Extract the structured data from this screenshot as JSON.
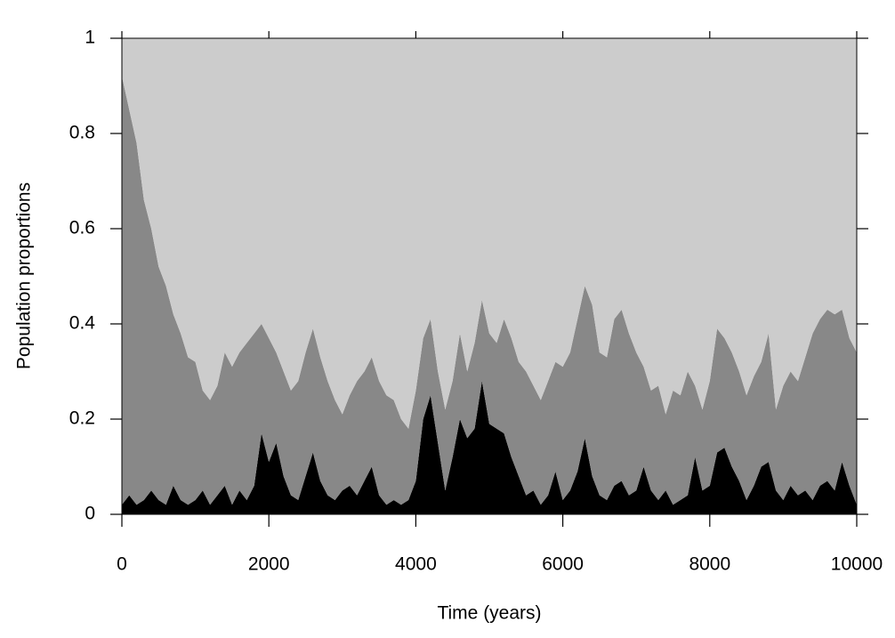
{
  "chart_data": {
    "type": "stacked_area",
    "x_label": "Time (years)",
    "y_label": "Population proportions",
    "x": [
      0,
      100,
      200,
      300,
      400,
      500,
      600,
      700,
      800,
      900,
      1000,
      1100,
      1200,
      1300,
      1400,
      1500,
      1600,
      1700,
      1800,
      1900,
      2000,
      2100,
      2200,
      2300,
      2400,
      2500,
      2600,
      2700,
      2800,
      2900,
      3000,
      3100,
      3200,
      3300,
      3400,
      3500,
      3600,
      3700,
      3800,
      3900,
      4000,
      4100,
      4200,
      4300,
      4400,
      4500,
      4600,
      4700,
      4800,
      4900,
      5000,
      5100,
      5200,
      5300,
      5400,
      5500,
      5600,
      5700,
      5800,
      5900,
      6000,
      6100,
      6200,
      6300,
      6400,
      6500,
      6600,
      6700,
      6800,
      6900,
      7000,
      7100,
      7200,
      7300,
      7400,
      7500,
      7600,
      7700,
      7800,
      7900,
      8000,
      8100,
      8200,
      8300,
      8400,
      8500,
      8600,
      8700,
      8800,
      8900,
      9000,
      9100,
      9200,
      9300,
      9400,
      9500,
      9600,
      9700,
      9800,
      9900,
      10000
    ],
    "series": [
      {
        "color": "#000000",
        "values": [
          0.02,
          0.04,
          0.02,
          0.03,
          0.05,
          0.03,
          0.02,
          0.06,
          0.03,
          0.02,
          0.03,
          0.05,
          0.02,
          0.04,
          0.06,
          0.02,
          0.05,
          0.03,
          0.06,
          0.17,
          0.11,
          0.15,
          0.08,
          0.04,
          0.03,
          0.08,
          0.13,
          0.07,
          0.04,
          0.03,
          0.05,
          0.06,
          0.04,
          0.07,
          0.1,
          0.04,
          0.02,
          0.03,
          0.02,
          0.03,
          0.07,
          0.2,
          0.25,
          0.15,
          0.05,
          0.12,
          0.2,
          0.16,
          0.18,
          0.28,
          0.19,
          0.18,
          0.17,
          0.12,
          0.08,
          0.04,
          0.05,
          0.02,
          0.04,
          0.09,
          0.03,
          0.05,
          0.09,
          0.16,
          0.08,
          0.04,
          0.03,
          0.06,
          0.07,
          0.04,
          0.05,
          0.1,
          0.05,
          0.03,
          0.05,
          0.02,
          0.03,
          0.04,
          0.12,
          0.05,
          0.06,
          0.13,
          0.14,
          0.1,
          0.07,
          0.03,
          0.06,
          0.1,
          0.11,
          0.05,
          0.03,
          0.06,
          0.04,
          0.05,
          0.03,
          0.06,
          0.07,
          0.05,
          0.11,
          0.06,
          0.02
        ]
      },
      {
        "color": "#888888",
        "values": [
          0.9,
          0.81,
          0.76,
          0.63,
          0.55,
          0.49,
          0.46,
          0.36,
          0.35,
          0.31,
          0.29,
          0.21,
          0.22,
          0.23,
          0.28,
          0.29,
          0.29,
          0.33,
          0.32,
          0.23,
          0.26,
          0.19,
          0.22,
          0.22,
          0.25,
          0.26,
          0.26,
          0.26,
          0.24,
          0.21,
          0.16,
          0.19,
          0.24,
          0.23,
          0.23,
          0.24,
          0.23,
          0.21,
          0.18,
          0.15,
          0.19,
          0.17,
          0.16,
          0.15,
          0.17,
          0.16,
          0.18,
          0.14,
          0.18,
          0.17,
          0.19,
          0.18,
          0.24,
          0.25,
          0.24,
          0.26,
          0.22,
          0.22,
          0.24,
          0.23,
          0.28,
          0.29,
          0.32,
          0.32,
          0.36,
          0.3,
          0.3,
          0.35,
          0.36,
          0.34,
          0.29,
          0.21,
          0.21,
          0.24,
          0.16,
          0.24,
          0.22,
          0.26,
          0.15,
          0.17,
          0.22,
          0.26,
          0.23,
          0.24,
          0.23,
          0.22,
          0.23,
          0.22,
          0.27,
          0.17,
          0.24,
          0.24,
          0.24,
          0.28,
          0.35,
          0.35,
          0.36,
          0.37,
          0.32,
          0.31,
          0.32
        ]
      },
      {
        "color": "#cccccc",
        "values": [
          0.08,
          0.15,
          0.22,
          0.34,
          0.4,
          0.48,
          0.52,
          0.58,
          0.62,
          0.67,
          0.68,
          0.74,
          0.76,
          0.73,
          0.66,
          0.69,
          0.66,
          0.64,
          0.62,
          0.6,
          0.63,
          0.66,
          0.7,
          0.74,
          0.72,
          0.66,
          0.61,
          0.67,
          0.72,
          0.76,
          0.79,
          0.75,
          0.72,
          0.7,
          0.67,
          0.72,
          0.75,
          0.76,
          0.8,
          0.82,
          0.74,
          0.63,
          0.59,
          0.7,
          0.78,
          0.72,
          0.62,
          0.7,
          0.64,
          0.55,
          0.62,
          0.64,
          0.59,
          0.63,
          0.68,
          0.7,
          0.73,
          0.76,
          0.72,
          0.68,
          0.69,
          0.66,
          0.59,
          0.52,
          0.56,
          0.66,
          0.67,
          0.59,
          0.57,
          0.62,
          0.66,
          0.69,
          0.74,
          0.73,
          0.79,
          0.74,
          0.75,
          0.7,
          0.73,
          0.78,
          0.72,
          0.61,
          0.63,
          0.66,
          0.7,
          0.75,
          0.71,
          0.68,
          0.62,
          0.78,
          0.73,
          0.7,
          0.72,
          0.67,
          0.62,
          0.59,
          0.57,
          0.58,
          0.57,
          0.63,
          0.66
        ]
      }
    ],
    "xlim": [
      0,
      10000
    ],
    "xticks": [
      0,
      2000,
      4000,
      6000,
      8000,
      10000
    ],
    "ylim": [
      0,
      1
    ],
    "yticks": [
      0,
      0.2,
      0.4,
      0.6,
      0.8,
      1
    ]
  }
}
